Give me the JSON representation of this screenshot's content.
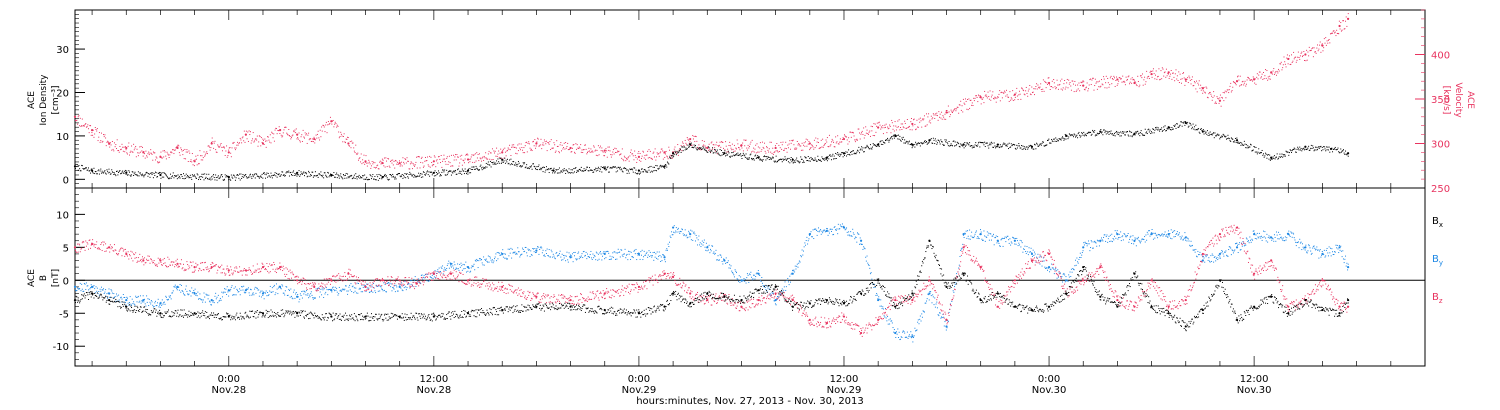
{
  "colors": {
    "black": "#000000",
    "blue": "#1e88e5",
    "red": "#e8335f"
  },
  "x_axis": {
    "caption": "hours:minutes, Nov. 27, 2013 - Nov. 30, 2013",
    "ticks": [
      {
        "time": "0:00",
        "date": "Nov.28",
        "hour": 24
      },
      {
        "time": "12:00",
        "date": "Nov.28",
        "hour": 36
      },
      {
        "time": "0:00",
        "date": "Nov.29",
        "hour": 48
      },
      {
        "time": "12:00",
        "date": "Nov.29",
        "hour": 60
      },
      {
        "time": "0:00",
        "date": "Nov.30",
        "hour": 72
      },
      {
        "time": "12:00",
        "date": "Nov.30",
        "hour": 84
      }
    ]
  },
  "chart_data": [
    {
      "type": "scatter",
      "panel": "plasma",
      "ylabel": "ACE Ion Density [cm⁻³]",
      "ylabel_lines": [
        "ACE",
        "Ion Density",
        "[cm⁻³]"
      ],
      "y2label": "ACE Velocity [km/s]",
      "y2label_lines": [
        "ACE",
        "Velocity",
        "[km/s]"
      ],
      "xlim_hours": [
        15,
        94
      ],
      "ylim": [
        -2,
        39
      ],
      "y2lim": [
        250,
        450
      ],
      "yticks": [
        0,
        10,
        20,
        30
      ],
      "y2ticks": [
        250,
        300,
        350,
        400
      ],
      "series": [
        {
          "axis": "left",
          "color": "black",
          "x": [
            15,
            16,
            18,
            20,
            24,
            28,
            30,
            33,
            36,
            38,
            40,
            43,
            46,
            48,
            49.5,
            50,
            51,
            53,
            55,
            57,
            59,
            60,
            62,
            63,
            64,
            65,
            67,
            69,
            71,
            73,
            75,
            77,
            79,
            80,
            81,
            83,
            85,
            87,
            88.5,
            89.5
          ],
          "y": [
            3,
            2,
            1.5,
            1,
            0.5,
            1.5,
            1,
            0.5,
            1.5,
            2,
            4.5,
            2,
            2.5,
            2,
            3,
            6,
            8,
            6,
            5,
            4.5,
            5,
            6,
            8,
            10,
            8,
            9,
            8,
            8,
            7.5,
            10,
            11,
            10.5,
            12,
            13,
            11,
            9,
            5,
            7.5,
            7,
            6
          ]
        },
        {
          "axis": "right",
          "color": "red",
          "x": [
            15,
            16,
            17,
            18,
            19,
            20,
            21,
            22,
            23,
            24,
            25,
            26,
            27,
            28,
            29,
            30,
            31,
            32,
            33,
            34,
            36,
            38,
            40,
            42,
            44,
            46,
            48,
            49.5,
            50,
            51,
            52,
            54,
            56,
            58,
            60,
            62,
            64,
            66,
            68,
            70,
            72,
            74,
            76,
            77,
            78,
            79,
            80,
            81,
            82,
            83,
            84,
            85,
            86,
            87,
            88,
            89,
            89.5
          ],
          "y": [
            330,
            315,
            300,
            295,
            290,
            285,
            295,
            280,
            300,
            290,
            310,
            300,
            315,
            310,
            305,
            325,
            300,
            280,
            278,
            278,
            280,
            282,
            290,
            300,
            295,
            292,
            285,
            290,
            290,
            305,
            295,
            298,
            295,
            300,
            305,
            318,
            322,
            335,
            352,
            355,
            368,
            365,
            372,
            368,
            378,
            380,
            372,
            362,
            348,
            370,
            372,
            380,
            395,
            400,
            410,
            432,
            440
          ]
        }
      ]
    },
    {
      "type": "scatter",
      "panel": "magnetic_field",
      "ylabel": "ACE B [nT]",
      "ylabel_lines": [
        "ACE",
        "B",
        "[nT]"
      ],
      "xlim_hours": [
        15,
        94
      ],
      "ylim": [
        -13,
        14
      ],
      "yticks": [
        -10,
        -5,
        0,
        5,
        10
      ],
      "legend": [
        "Bx",
        "By",
        "Bz"
      ],
      "legend_placement": "right",
      "series": [
        {
          "name": "Bx",
          "color": "black",
          "x": [
            15,
            16,
            17,
            18,
            20,
            22,
            24,
            26,
            28,
            30,
            32,
            34,
            36,
            38,
            40,
            42,
            44,
            46,
            48,
            49.5,
            50,
            51,
            52,
            53,
            54,
            55,
            56,
            57,
            58,
            59,
            60,
            61,
            62,
            63,
            64,
            65,
            66,
            67,
            68,
            69,
            70,
            71,
            72,
            73,
            74,
            75,
            76,
            77,
            78,
            79,
            80,
            81,
            82,
            83,
            84,
            85,
            86,
            87,
            88,
            89,
            89.5
          ],
          "y": [
            -3,
            -2,
            -3,
            -4,
            -5,
            -5,
            -5.5,
            -5,
            -5,
            -5.5,
            -5.5,
            -5.5,
            -5.5,
            -5,
            -4.5,
            -4,
            -4,
            -4.5,
            -5,
            -4,
            -2,
            -3.5,
            -2,
            -2.5,
            -3,
            -1.5,
            -1,
            -4,
            -3.5,
            -3,
            -3.5,
            -2,
            0,
            -4,
            -2,
            6,
            -1,
            1,
            -3,
            -2,
            -4,
            -4.5,
            -4,
            -2,
            2,
            -2.5,
            -4,
            1,
            -4,
            -5,
            -7,
            -4.5,
            0,
            -6,
            -4,
            -2.5,
            -5,
            -3,
            -4.5,
            -5,
            -3
          ]
        },
        {
          "name": "By",
          "color": "blue",
          "x": [
            15,
            16,
            17,
            18,
            19,
            20,
            21,
            22,
            23,
            24,
            25,
            26,
            27,
            28,
            30,
            32,
            34,
            36,
            37,
            38,
            40,
            42,
            44,
            46,
            48,
            49.5,
            50,
            51,
            52,
            53,
            54,
            55,
            56,
            57,
            58,
            59,
            60,
            61,
            62,
            63,
            64,
            65,
            66,
            67,
            68,
            69,
            70,
            71,
            72,
            73,
            74,
            75,
            76,
            77,
            78,
            79,
            80,
            81,
            82,
            83,
            84,
            85,
            86,
            87,
            88,
            89,
            89.5
          ],
          "y": [
            -1,
            -1,
            -2,
            -3,
            -3,
            -3.5,
            -1,
            -2,
            -3,
            -1.5,
            -1.5,
            -2,
            -1,
            -2.5,
            -1.5,
            -1,
            -1,
            1,
            2.5,
            2,
            4,
            4.5,
            3.5,
            4,
            4,
            3.5,
            8,
            7,
            5,
            3,
            0,
            1,
            -3,
            1,
            7,
            7.5,
            8,
            6,
            -3,
            -8,
            -8.5,
            -2,
            -7,
            7,
            7,
            6,
            6,
            4,
            2,
            0,
            5,
            6,
            7,
            6,
            7,
            7,
            6.5,
            3,
            4,
            5,
            7,
            6.5,
            7,
            5,
            4,
            5,
            2
          ]
        },
        {
          "name": "Bz",
          "color": "red",
          "x": [
            15,
            16,
            17,
            18,
            19,
            20,
            21,
            22,
            23,
            24,
            25,
            26,
            27,
            28,
            29,
            30,
            31,
            32,
            33,
            34,
            35,
            36,
            37,
            38,
            40,
            42,
            44,
            46,
            48,
            49.5,
            50,
            51,
            52,
            53,
            54,
            55,
            56,
            57,
            58,
            59,
            60,
            61,
            62,
            63,
            64,
            65,
            66,
            67,
            68,
            69,
            70,
            71,
            72,
            73,
            74,
            75,
            76,
            77,
            78,
            79,
            80,
            81,
            82,
            83,
            84,
            85,
            86,
            87,
            88,
            89,
            89.5
          ],
          "y": [
            5,
            5.5,
            5,
            4,
            3,
            3,
            2.5,
            2,
            2,
            1.5,
            1.5,
            2,
            2,
            0,
            -1,
            0,
            1,
            -1,
            0,
            0,
            -0.5,
            1,
            1,
            0,
            -1,
            -2.5,
            -3,
            -2,
            -1,
            1,
            0.5,
            -2,
            -3,
            -2.5,
            -4,
            -3,
            -2,
            -3,
            -6,
            -6.5,
            -5.5,
            -8,
            -6,
            -3,
            -3,
            0,
            -6,
            5,
            2,
            -4,
            0,
            3,
            4,
            -2,
            0,
            2,
            -3,
            -4,
            0,
            -4,
            -3,
            4,
            7,
            8,
            1,
            3,
            -4,
            -3,
            0,
            -4,
            -4
          ]
        }
      ]
    }
  ]
}
